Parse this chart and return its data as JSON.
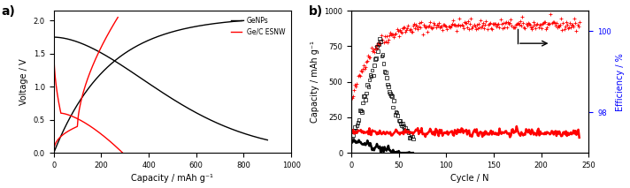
{
  "panel_a": {
    "title": "a)",
    "xlabel": "Capacity / mAh g⁻¹",
    "ylabel": "Voltage / V",
    "xlim": [
      0,
      1000
    ],
    "ylim": [
      0,
      2.15
    ],
    "xticks": [
      0,
      200,
      400,
      600,
      800,
      1000
    ],
    "yticks": [
      0.0,
      0.5,
      1.0,
      1.5,
      2.0
    ],
    "legend_labels": [
      "GeNPs",
      "Ge/C ESNW"
    ],
    "legend_colors": [
      "black",
      "red"
    ]
  },
  "panel_b": {
    "title": "b)",
    "xlabel": "Cycle / N",
    "ylabel_left": "Capacity / mAh g⁻¹",
    "ylabel_right": "Efficiency / %",
    "xlim": [
      0,
      250
    ],
    "ylim_left": [
      0,
      1000
    ],
    "ylim_right": [
      97.0,
      100.5
    ],
    "xticks": [
      0,
      50,
      100,
      150,
      200,
      250
    ],
    "yticks_left": [
      0,
      250,
      500,
      750,
      1000
    ],
    "yticks_right": [
      98,
      100
    ]
  }
}
